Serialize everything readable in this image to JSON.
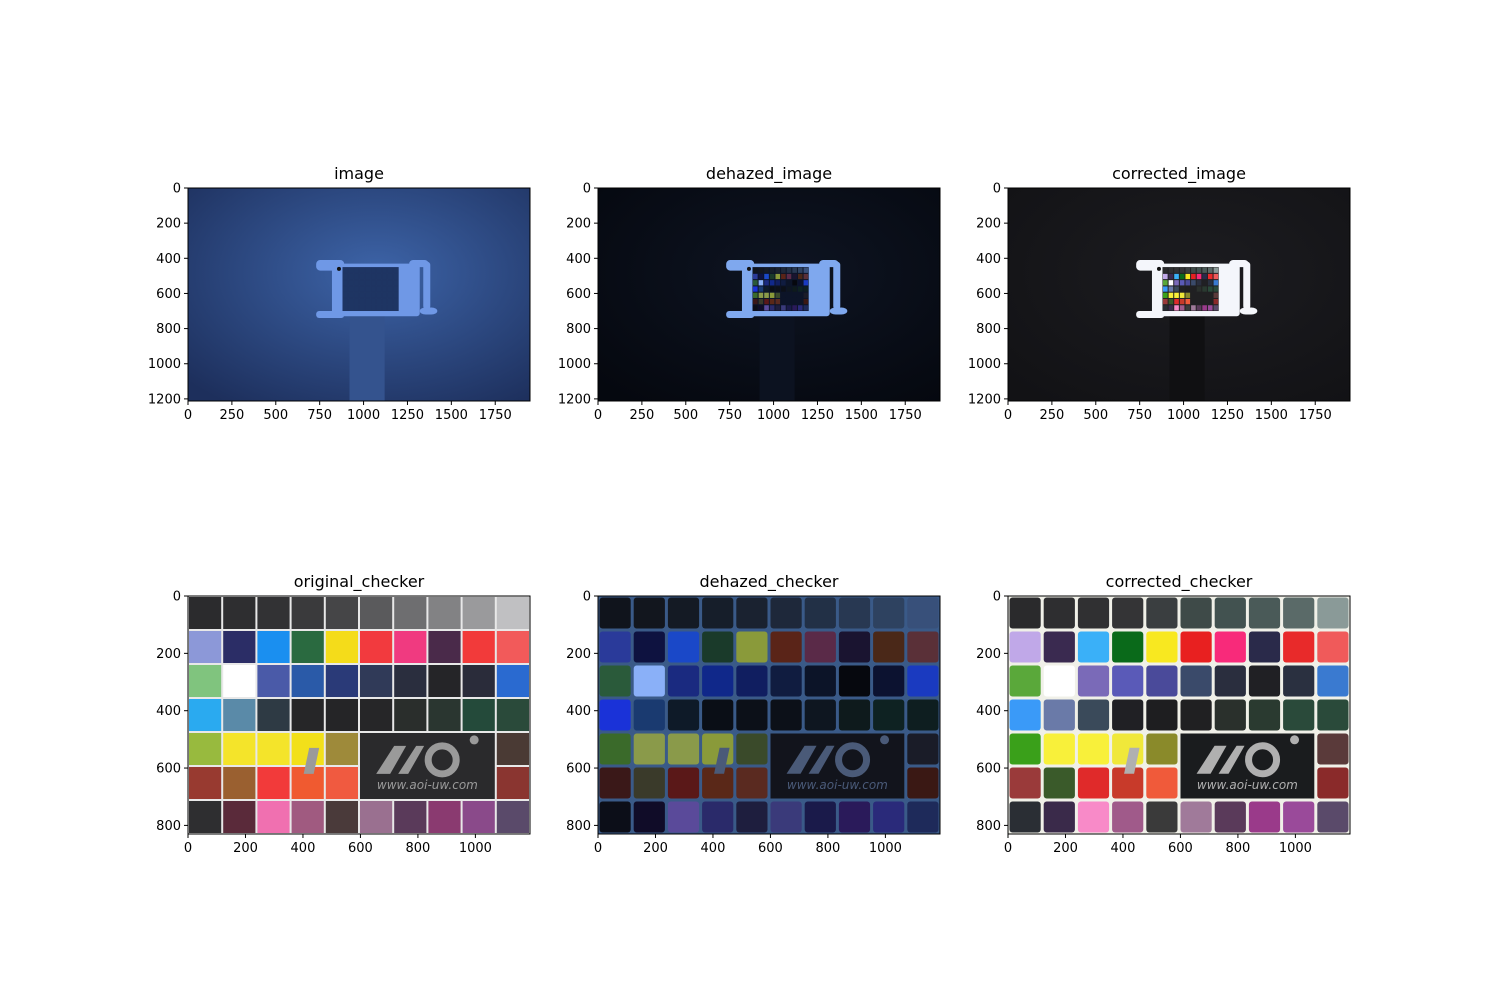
{
  "figure": {
    "panels": [
      {
        "title": "image",
        "kind": "scene",
        "variant": "hazy",
        "colors": {
          "bg_center": "#3d64a8",
          "bg_edge": "#1d2f5c",
          "frame": "#6f98e6",
          "shaft": "#34538e",
          "cell_dim": "#1f3563"
        },
        "x_ticks": [
          "0",
          "250",
          "500",
          "750",
          "1000",
          "1250",
          "1500",
          "1750"
        ],
        "y_ticks": [
          "0",
          "200",
          "400",
          "600",
          "800",
          "1000",
          "1200"
        ]
      },
      {
        "title": "dehazed_image",
        "kind": "scene",
        "variant": "dehazed",
        "colors": {
          "bg_center": "#0e1422",
          "bg_edge": "#05080f",
          "frame": "#7fa8ee",
          "shaft": "#0c1220",
          "cell_dim": "#0c1428"
        },
        "x_ticks": [
          "0",
          "250",
          "500",
          "750",
          "1000",
          "1250",
          "1500",
          "1750"
        ],
        "y_ticks": [
          "0",
          "200",
          "400",
          "600",
          "800",
          "1000",
          "1200"
        ]
      },
      {
        "title": "corrected_image",
        "kind": "scene",
        "variant": "corrected",
        "colors": {
          "bg_center": "#1c1c20",
          "bg_edge": "#121215",
          "frame": "#f4f6fb",
          "shaft": "#101012",
          "cell_dim": "#202022"
        },
        "x_ticks": [
          "0",
          "250",
          "500",
          "750",
          "1000",
          "1250",
          "1500",
          "1750"
        ],
        "y_ticks": [
          "0",
          "200",
          "400",
          "600",
          "800",
          "1000",
          "1200"
        ]
      },
      {
        "title": "original_checker",
        "kind": "checker",
        "variant": "original",
        "x_ticks": [
          "0",
          "200",
          "400",
          "600",
          "800",
          "1000"
        ],
        "y_ticks": [
          "0",
          "200",
          "400",
          "600",
          "800"
        ],
        "logo_text": "www.aoi-uw.com",
        "colors": {
          "grid": "#e8e8e8",
          "logo_bg": "#2a2a2c",
          "logo_fg": "#9a9a9a"
        },
        "cells": [
          [
            "#2b2b2d",
            "#2e2e30",
            "#323234",
            "#3a3a3c",
            "#454547",
            "#5a5a5c",
            "#6e6e70",
            "#828284",
            "#9a9a9c",
            "#c0c0c2"
          ],
          [
            "#8c98d8",
            "#2b2d66",
            "#1a8ff0",
            "#2a6a40",
            "#f4dc1a",
            "#f23a3e",
            "#f03a80",
            "#4a2a4a",
            "#f23a3a",
            "#f25a5a"
          ],
          [
            "#80c47e",
            "#ffffff",
            "#4a5aa8",
            "#2a5aa8",
            "#2a3a78",
            "#303a58",
            "#2a2e3e",
            "#252528",
            "#2a2c3a",
            "#2a6ad0"
          ],
          [
            "#2aaaf0",
            "#5a8aa8",
            "#2e3a44",
            "#262628",
            "#252527",
            "#262628",
            "#2a2e2c",
            "#2a3630",
            "#244a3a",
            "#2a4a3a"
          ],
          [
            "#98ba3e",
            "#f4e42a",
            "#f4e42a",
            "#f2e01a",
            "#9e8a3a",
            "LOGO",
            "LOGO",
            "LOGO",
            "LOGO",
            "#4a3a34"
          ],
          [
            "#983a30",
            "#9a6030",
            "#f23a3a",
            "#f05a30",
            "#f05a40",
            "LOGO",
            "LOGO",
            "LOGO",
            "LOGO",
            "#8a3530"
          ],
          [
            "#2e2e30",
            "#5a2a3a",
            "#f070b0",
            "#a05a80",
            "#4a3a3a",
            "#9a7090",
            "#5a3a5a",
            "#8a3a70",
            "#8a4a8a",
            "#5a4a6a"
          ]
        ]
      },
      {
        "title": "dehazed_checker",
        "kind": "checker",
        "variant": "dehazed",
        "x_ticks": [
          "0",
          "200",
          "400",
          "600",
          "800",
          "1000"
        ],
        "y_ticks": [
          "0",
          "200",
          "400",
          "600",
          "800"
        ],
        "logo_text": "www.aoi-uw.com",
        "colors": {
          "grid": "#3a5a88",
          "logo_bg": "#12141c",
          "logo_fg": "#4a5a78"
        },
        "cells": [
          [
            "#10141c",
            "#12161e",
            "#141a24",
            "#161e2a",
            "#1a2230",
            "#1e283a",
            "#223046",
            "#283852",
            "#2e4260",
            "#38507a"
          ],
          [
            "#2a3a9a",
            "#0e1240",
            "#1a48c8",
            "#1a3a2a",
            "#8a9a3a",
            "#5a2418",
            "#5a2a48",
            "#1a1430",
            "#4a2818",
            "#5a3038"
          ],
          [
            "#2a5a3a",
            "#8ab0f8",
            "#1a2a80",
            "#10288a",
            "#101e60",
            "#101c40",
            "#0c1428",
            "#06080e",
            "#0c1230",
            "#1a3ac0"
          ],
          [
            "#1a32d8",
            "#1a3a70",
            "#0e1a28",
            "#0a0e16",
            "#0c1018",
            "#0c1018",
            "#0e1620",
            "#0e1a1c",
            "#0e2222",
            "#0e1e20"
          ],
          [
            "#3a6a2a",
            "#8a9a4a",
            "#8a9a4a",
            "#8a9a3a",
            "#3a4a2a",
            "LOGO",
            "LOGO",
            "LOGO",
            "LOGO",
            "#1a1c28"
          ],
          [
            "#3a1818",
            "#3a3a2a",
            "#5a1818",
            "#5a2818",
            "#5a2a20",
            "LOGO",
            "LOGO",
            "LOGO",
            "LOGO",
            "#3a1814"
          ],
          [
            "#0c0e18",
            "#100c28",
            "#5a4a9a",
            "#2a2a6a",
            "#1e1e3e",
            "#3a3a7a",
            "#1a1a4a",
            "#2a1a5a",
            "#2a2a7a",
            "#1e2a5a"
          ]
        ]
      },
      {
        "title": "corrected_checker",
        "kind": "checker",
        "variant": "corrected",
        "x_ticks": [
          "0",
          "200",
          "400",
          "600",
          "800",
          "1000"
        ],
        "y_ticks": [
          "0",
          "200",
          "400",
          "600",
          "800"
        ],
        "logo_text": "www.aoi-uw.com",
        "colors": {
          "grid": "#f0f0e8",
          "logo_bg": "#1a1c1e",
          "logo_fg": "#b0b0b0"
        },
        "cells": [
          [
            "#2a2a2c",
            "#2e2e30",
            "#303032",
            "#343436",
            "#3a3e40",
            "#3e4a48",
            "#425250",
            "#4a5a58",
            "#5a6a68",
            "#8a9a98"
          ],
          [
            "#c0a8e8",
            "#3a2a50",
            "#3ab0f8",
            "#0a6a1a",
            "#f8e820",
            "#e82020",
            "#f82a7a",
            "#2a2a4a",
            "#e82a2a",
            "#f05a5a"
          ],
          [
            "#5aa83a",
            "#ffffff",
            "#7a6ab8",
            "#5a5ab8",
            "#4a4a9a",
            "#3a4a6a",
            "#2a2e3e",
            "#202024",
            "#2a3040",
            "#3a7ad0"
          ],
          [
            "#3a9af8",
            "#6a7aa8",
            "#3a4a5a",
            "#202024",
            "#1e1e20",
            "#202022",
            "#2a302c",
            "#2a3a30",
            "#2a4a3a",
            "#2a4a3a"
          ],
          [
            "#3aa01a",
            "#f8f03a",
            "#f8f03a",
            "#f0e83a",
            "#8a8a2a",
            "LOGO",
            "LOGO",
            "LOGO",
            "LOGO",
            "#5a3a3a"
          ],
          [
            "#9a3a3a",
            "#3a5a2a",
            "#e02a2a",
            "#c83a2a",
            "#f05a3a",
            "LOGO",
            "LOGO",
            "LOGO",
            "LOGO",
            "#8a2a2a"
          ],
          [
            "#2a2e34",
            "#3a2a4a",
            "#f88ac8",
            "#a05a8a",
            "#3a3a3a",
            "#a07a9a",
            "#5a3a5a",
            "#9a3a8a",
            "#9a4a9a",
            "#5a4a6a"
          ]
        ]
      }
    ]
  }
}
